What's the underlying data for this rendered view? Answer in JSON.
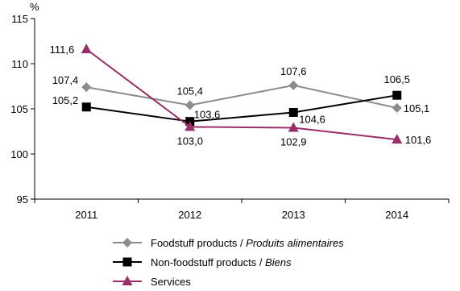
{
  "chart_data": {
    "type": "line",
    "ylabel": "%",
    "categories": [
      "2011",
      "2012",
      "2013",
      "2014"
    ],
    "ylim": [
      95,
      115
    ],
    "yticks": [
      95,
      100,
      105,
      110,
      115
    ],
    "grid": false,
    "legend_placement": "bottom",
    "series": [
      {
        "name_main": "Foodstuff products / ",
        "name_italic": "Produits alimentaires",
        "values": [
          107.4,
          105.4,
          107.6,
          105.1
        ],
        "labels": [
          "107,4",
          "105,4",
          "107,6",
          "105,1"
        ],
        "color": "#8c8c8c",
        "marker": "diamond"
      },
      {
        "name_main": "Non-foodstuff products / ",
        "name_italic": "Biens",
        "values": [
          105.2,
          103.6,
          104.6,
          106.5
        ],
        "labels": [
          "105,2",
          "103,6",
          "104,6",
          "106,5"
        ],
        "color": "#000000",
        "marker": "square"
      },
      {
        "name_main": "Services",
        "name_italic": "",
        "values": [
          111.6,
          103.0,
          102.9,
          101.6
        ],
        "labels": [
          "111,6",
          "103,0",
          "102,9",
          "101,6"
        ],
        "color": "#9b2d6a",
        "marker": "triangle"
      }
    ]
  }
}
